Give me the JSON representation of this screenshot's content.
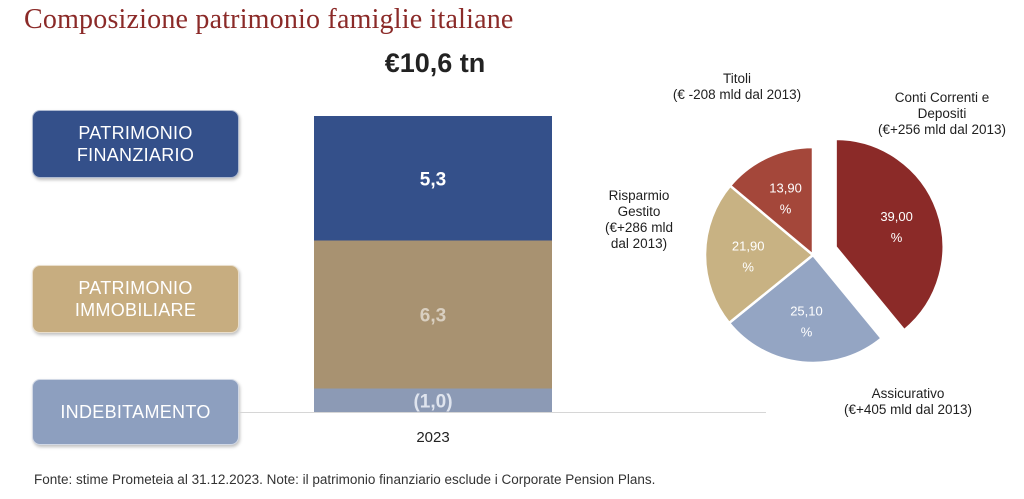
{
  "title": "Composizione patrimonio famiglie italiane",
  "total_label": "€10,6 tn",
  "legend": {
    "finanziario": "PATRIMONIO\nFINANZIARIO",
    "immobiliare": "PATRIMONIO\nIMMOBILIARE",
    "indebitamento": "INDEBITAMENTO"
  },
  "note": "Fonte: stime Prometeia al 31.12.2023. Note: il patrimonio finanziario esclude i Corporate Pension Plans.",
  "colors": {
    "finanziario": "#34508a",
    "immobiliare": "#a89271",
    "indebitamento": "#8c9ab5",
    "conti_correnti": "#8b2a28",
    "assicurativo": "#94a5c3",
    "risparmio_gestito": "#c8b283",
    "titoli": "#a4473a"
  },
  "chart_data": [
    {
      "type": "bar",
      "categories": [
        "2023"
      ],
      "series": [
        {
          "name": "PATRIMONIO FINANZIARIO",
          "values": [
            5.3
          ],
          "label": "5,3",
          "color": "#34508a",
          "label_color": "#ffffff"
        },
        {
          "name": "PATRIMONIO IMMOBILIARE",
          "values": [
            6.3
          ],
          "label": "6,3",
          "color": "#a89271",
          "label_color": "#d9cfc0"
        },
        {
          "name": "INDEBITAMENTO",
          "values": [
            1.0
          ],
          "label": "(1,0)",
          "color": "#8c9ab5",
          "label_color": "#dfe4ee"
        }
      ],
      "stacked": true,
      "title": "€10,6 tn",
      "xlabel": "",
      "ylabel": "",
      "ylim": [
        0,
        12.6
      ]
    },
    {
      "type": "pie",
      "slices": [
        {
          "name": "Conti Correnti e\nDepositi\n(€+256 mld dal 2013)",
          "value": 39.0,
          "label": "39,00\n%",
          "color": "#8b2a28",
          "exploded": true
        },
        {
          "name": "Assicurativo\n(€+405 mld dal 2013)",
          "value": 25.1,
          "label": "25,10\n%",
          "color": "#94a5c3",
          "exploded": false
        },
        {
          "name": "Risparmio\nGestito\n(€+286 mld\ndal 2013)",
          "value": 21.9,
          "label": "21,90\n%",
          "color": "#c8b283",
          "exploded": false
        },
        {
          "name": "Titoli\n(€ -208 mld dal 2013)",
          "value": 13.9,
          "label": "13,90\n%",
          "color": "#a4473a",
          "exploded": false
        }
      ],
      "title": ""
    }
  ]
}
